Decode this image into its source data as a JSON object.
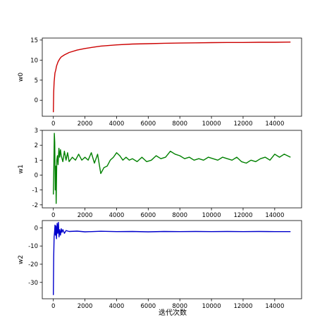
{
  "xlabel": "迭代次数",
  "chart_data": [
    {
      "type": "line",
      "ylabel": "w0",
      "color": "#cc0000",
      "xlim": [
        -700,
        15700
      ],
      "ylim": [
        -4,
        15.5
      ],
      "xticks": [
        0,
        2000,
        4000,
        6000,
        8000,
        10000,
        12000,
        14000
      ],
      "yticks": [
        0,
        5,
        10,
        15
      ],
      "series": [
        {
          "x": [
            0,
            20,
            50,
            100,
            150,
            200,
            300,
            400,
            500,
            700,
            1000,
            1500,
            2000,
            2500,
            3000,
            4000,
            5000,
            6000,
            7000,
            8000,
            9000,
            10000,
            11000,
            12000,
            13000,
            14000,
            15000
          ],
          "y": [
            -3,
            2,
            4.5,
            6.8,
            7.5,
            8.5,
            9.6,
            10.3,
            10.8,
            11.3,
            11.9,
            12.5,
            12.9,
            13.2,
            13.5,
            13.8,
            14.0,
            14.1,
            14.2,
            14.25,
            14.3,
            14.35,
            14.4,
            14.4,
            14.45,
            14.45,
            14.5
          ]
        }
      ]
    },
    {
      "type": "line",
      "ylabel": "w1",
      "color": "#008000",
      "xlim": [
        -700,
        15700
      ],
      "ylim": [
        -2.2,
        3
      ],
      "xticks": [
        0,
        2000,
        4000,
        6000,
        8000,
        10000,
        12000,
        14000
      ],
      "yticks": [
        -2,
        -1,
        0,
        1,
        2,
        3
      ],
      "series": [
        {
          "x": [
            0,
            30,
            60,
            90,
            120,
            150,
            180,
            220,
            260,
            300,
            350,
            400,
            450,
            500,
            600,
            700,
            800,
            900,
            1000,
            1200,
            1400,
            1600,
            1800,
            2000,
            2200,
            2400,
            2600,
            2800,
            3000,
            3200,
            3400,
            3600,
            3800,
            4000,
            4200,
            4400,
            4600,
            4800,
            5000,
            5300,
            5600,
            5900,
            6200,
            6500,
            6800,
            7100,
            7400,
            7700,
            8000,
            8300,
            8600,
            8900,
            9200,
            9500,
            9800,
            10100,
            10400,
            10700,
            11000,
            11300,
            11600,
            11900,
            12200,
            12500,
            12800,
            13100,
            13400,
            13700,
            14000,
            14300,
            14600,
            15000
          ],
          "y": [
            -1.3,
            0.5,
            2.8,
            2.2,
            -1.0,
            0.6,
            -1.9,
            1.0,
            1.3,
            0.7,
            1.8,
            1.2,
            1.7,
            1.3,
            0.9,
            1.6,
            1.0,
            1.5,
            0.9,
            1.2,
            1.0,
            1.4,
            1.0,
            1.2,
            1.0,
            1.5,
            0.8,
            1.4,
            0.1,
            0.5,
            0.6,
            1.0,
            1.2,
            1.5,
            1.3,
            1.0,
            1.2,
            1.0,
            1.1,
            0.9,
            1.2,
            0.9,
            1.0,
            1.3,
            1.1,
            1.2,
            1.6,
            1.4,
            1.3,
            1.1,
            1.2,
            1.0,
            1.1,
            1.0,
            1.2,
            1.1,
            1.0,
            1.2,
            1.1,
            1.0,
            1.2,
            0.9,
            0.8,
            1.0,
            0.9,
            1.1,
            1.2,
            1.0,
            1.4,
            1.2,
            1.4,
            1.2
          ]
        }
      ]
    },
    {
      "type": "line",
      "ylabel": "w2",
      "color": "#0000cc",
      "xlim": [
        -700,
        15700
      ],
      "ylim": [
        -39,
        4
      ],
      "xticks": [
        0,
        2000,
        4000,
        6000,
        8000,
        10000,
        12000,
        14000
      ],
      "yticks": [
        0,
        -10,
        -20,
        -30
      ],
      "series": [
        {
          "x": [
            0,
            20,
            50,
            80,
            100,
            130,
            160,
            200,
            240,
            280,
            320,
            360,
            400,
            450,
            500,
            550,
            600,
            700,
            800,
            1000,
            1500,
            2000,
            3000,
            4000,
            5000,
            6000,
            7000,
            8000,
            9000,
            10000,
            11000,
            12000,
            13000,
            14000,
            15000
          ],
          "y": [
            -37,
            -16,
            -5,
            -2,
            1.5,
            -4,
            1,
            -6,
            2.5,
            -3,
            3,
            -5,
            -1,
            -4,
            -0.5,
            -2.5,
            -1,
            -3,
            -1.5,
            -2,
            -1.8,
            -2.2,
            -1.9,
            -2.1,
            -2.0,
            -2.2,
            -2.0,
            -2.1,
            -2.0,
            -2.1,
            -2.0,
            -2.1,
            -2.0,
            -2.1,
            -2.1
          ]
        }
      ]
    }
  ]
}
